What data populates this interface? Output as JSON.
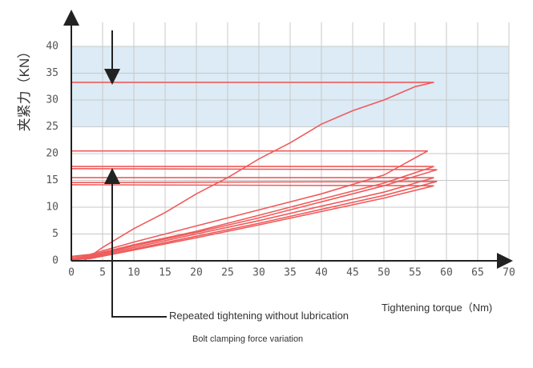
{
  "chart_data": {
    "type": "line",
    "ylabel": "夹紧力（KN）",
    "xlabel": "Tightening torque（Nm)",
    "annotations": [
      "Repeated tightening without lubrication",
      "Bolt clamping force variation"
    ],
    "xlim": [
      0,
      70
    ],
    "ylim": [
      0,
      40
    ],
    "xticks": [
      0,
      5,
      10,
      15,
      20,
      25,
      30,
      35,
      40,
      45,
      50,
      55,
      60,
      65,
      70
    ],
    "yticks": [
      0,
      5,
      10,
      15,
      20,
      25,
      30,
      35,
      40
    ],
    "grid": true,
    "band": {
      "from": 25,
      "to": 40,
      "color": "#dcebf5"
    },
    "series": [
      {
        "color": "#ef5b5b",
        "x": [
          2,
          5,
          10,
          15,
          20,
          25,
          30,
          35,
          40,
          45,
          50,
          55,
          58,
          0
        ],
        "values": [
          0,
          2.5,
          6,
          9,
          12.5,
          15.5,
          19,
          22,
          25.5,
          28,
          30,
          32.5,
          33.3,
          33.3
        ]
      },
      {
        "color": "#ef5b5b",
        "x": [
          0,
          3,
          10,
          20,
          30,
          40,
          50,
          57,
          0
        ],
        "values": [
          0.8,
          1.2,
          3.5,
          6.5,
          9.5,
          12.5,
          16,
          20.5,
          20.5
        ]
      },
      {
        "color": "#ef5b5b",
        "x": [
          0,
          3,
          10,
          20,
          30,
          40,
          50,
          58,
          0
        ],
        "values": [
          0.8,
          1,
          3,
          5.5,
          8.5,
          11.5,
          14.5,
          17.6,
          17.6
        ]
      },
      {
        "color": "#ef5b5b",
        "x": [
          0,
          3,
          10,
          20,
          30,
          40,
          50,
          58.5,
          0
        ],
        "values": [
          0.5,
          0.8,
          2.8,
          5.3,
          8,
          11,
          14,
          17,
          17.2
        ]
      },
      {
        "color": "#ef5b5b",
        "x": [
          0,
          3,
          10,
          20,
          30,
          40,
          50,
          58,
          0
        ],
        "values": [
          0.5,
          0.7,
          2.5,
          5,
          7.5,
          10.2,
          12.8,
          15.5,
          15.5
        ]
      },
      {
        "color": "#ef5b5b",
        "x": [
          0,
          3,
          10,
          20,
          30,
          40,
          50,
          58.5,
          0
        ],
        "values": [
          0.3,
          0.5,
          2.2,
          4.6,
          7,
          9.6,
          12.2,
          14.8,
          14.6
        ]
      },
      {
        "color": "#ef5b5b",
        "x": [
          0,
          3,
          10,
          20,
          30,
          40,
          50,
          58,
          0
        ],
        "values": [
          0.2,
          0.4,
          2,
          4.3,
          6.7,
          9.2,
          11.7,
          14,
          14.2
        ]
      }
    ]
  }
}
